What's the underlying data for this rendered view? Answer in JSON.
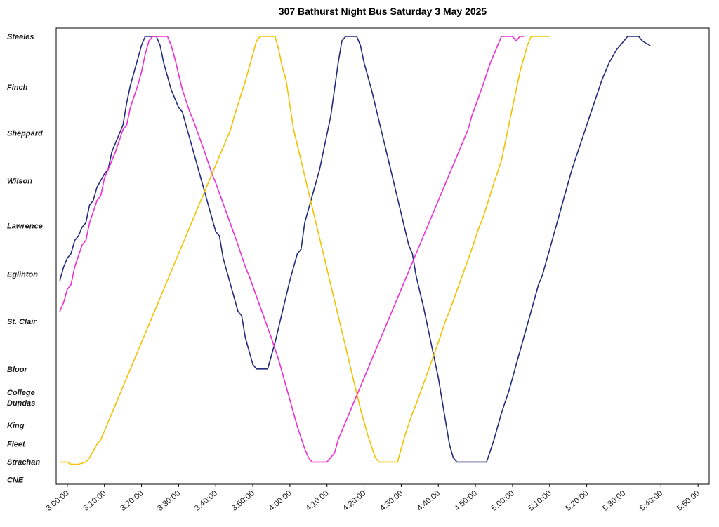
{
  "title": "307 Bathurst Night Bus Saturday 3 May 2025",
  "chart_data": {
    "type": "line",
    "title": "307 Bathurst Night Bus Saturday 3 May 2025",
    "xlabel": "",
    "ylabel": "",
    "grid": false,
    "legend_position": "none",
    "x_axis": {
      "unit": "minutes-after-midnight",
      "domain": [
        177,
        353
      ],
      "ticks": [
        180,
        190,
        200,
        210,
        220,
        230,
        240,
        250,
        260,
        270,
        280,
        290,
        300,
        310,
        320,
        330,
        340,
        350
      ],
      "tick_labels": [
        "3:00:00",
        "3:10:00",
        "3:20:00",
        "3:30:00",
        "3:40:00",
        "3:50:00",
        "4:00:00",
        "4:10:00",
        "4:20:00",
        "4:30:00",
        "4:40:00",
        "4:50:00",
        "5:00:00",
        "5:10:00",
        "5:20:00",
        "5:30:00",
        "5:40:00",
        "5:50:00"
      ]
    },
    "y_axis": {
      "unit": "relative-distance-along-route",
      "domain": [
        -1.9,
        101
      ],
      "inverted": true,
      "stations": [
        {
          "name": "Steeles",
          "pos": 0
        },
        {
          "name": "Finch",
          "pos": 11.4
        },
        {
          "name": "Sheppard",
          "pos": 21.8
        },
        {
          "name": "Wilson",
          "pos": 32.5
        },
        {
          "name": "Lawrence",
          "pos": 42.7
        },
        {
          "name": "Eglinton",
          "pos": 53.6
        },
        {
          "name": "St. Clair",
          "pos": 64.3
        },
        {
          "name": "Bloor",
          "pos": 75.0
        },
        {
          "name": "College",
          "pos": 80.3
        },
        {
          "name": "Dundas",
          "pos": 82.6
        },
        {
          "name": "King",
          "pos": 87.7
        },
        {
          "name": "Fleet",
          "pos": 91.9
        },
        {
          "name": "Strachan",
          "pos": 95.9
        },
        {
          "name": "CNE",
          "pos": 100
        }
      ]
    },
    "series": [
      {
        "name": "bus-run-navy",
        "color": "#232c7b",
        "points": [
          [
            178,
            55
          ],
          [
            179,
            52
          ],
          [
            180,
            50
          ],
          [
            181,
            49
          ],
          [
            182,
            46
          ],
          [
            183,
            45
          ],
          [
            184,
            43
          ],
          [
            185,
            42
          ],
          [
            186,
            38
          ],
          [
            187,
            37
          ],
          [
            188,
            34
          ],
          [
            190,
            31
          ],
          [
            191,
            30
          ],
          [
            192,
            26
          ],
          [
            194,
            22
          ],
          [
            195,
            20
          ],
          [
            196,
            15
          ],
          [
            197,
            11
          ],
          [
            198,
            8
          ],
          [
            199,
            5
          ],
          [
            200,
            2
          ],
          [
            201,
            0
          ],
          [
            204,
            0
          ],
          [
            205,
            2
          ],
          [
            206,
            6
          ],
          [
            208,
            12
          ],
          [
            210,
            16
          ],
          [
            211,
            17
          ],
          [
            212,
            20
          ],
          [
            214,
            26
          ],
          [
            216,
            32
          ],
          [
            218,
            38
          ],
          [
            220,
            44
          ],
          [
            221,
            45
          ],
          [
            222,
            50
          ],
          [
            224,
            56
          ],
          [
            226,
            62
          ],
          [
            227,
            63
          ],
          [
            228,
            68
          ],
          [
            229,
            71
          ],
          [
            230,
            74
          ],
          [
            231,
            75
          ],
          [
            234,
            75
          ],
          [
            236,
            69
          ],
          [
            238,
            62
          ],
          [
            240,
            55
          ],
          [
            242,
            49
          ],
          [
            243,
            48
          ],
          [
            244,
            42
          ],
          [
            246,
            36
          ],
          [
            248,
            30
          ],
          [
            250,
            22
          ],
          [
            251,
            18
          ],
          [
            252,
            12
          ],
          [
            253,
            6
          ],
          [
            254,
            1
          ],
          [
            255,
            0
          ],
          [
            258,
            0
          ],
          [
            259,
            2
          ],
          [
            260,
            6
          ],
          [
            262,
            12
          ],
          [
            264,
            19
          ],
          [
            266,
            26
          ],
          [
            268,
            33
          ],
          [
            270,
            40
          ],
          [
            272,
            47
          ],
          [
            273,
            49
          ],
          [
            274,
            54
          ],
          [
            276,
            61
          ],
          [
            278,
            69
          ],
          [
            280,
            77
          ],
          [
            281,
            82
          ],
          [
            282,
            87
          ],
          [
            283,
            92
          ],
          [
            284,
            95
          ],
          [
            285,
            96
          ],
          [
            293,
            96
          ],
          [
            295,
            91
          ],
          [
            297,
            85
          ],
          [
            299,
            80
          ],
          [
            301,
            74
          ],
          [
            303,
            68
          ],
          [
            305,
            62
          ],
          [
            307,
            56
          ],
          [
            308,
            54
          ],
          [
            310,
            48
          ],
          [
            312,
            42
          ],
          [
            314,
            36
          ],
          [
            316,
            30
          ],
          [
            318,
            25
          ],
          [
            320,
            20
          ],
          [
            322,
            15
          ],
          [
            324,
            10
          ],
          [
            326,
            6
          ],
          [
            328,
            3
          ],
          [
            330,
            1
          ],
          [
            331,
            0
          ],
          [
            334,
            0
          ],
          [
            335,
            1
          ],
          [
            336,
            1.5
          ],
          [
            337,
            2
          ]
        ]
      },
      {
        "name": "bus-run-magenta",
        "color": "#ee2ed2",
        "points": [
          [
            178,
            62
          ],
          [
            179,
            60
          ],
          [
            180,
            57
          ],
          [
            181,
            56
          ],
          [
            182,
            52
          ],
          [
            184,
            47
          ],
          [
            185,
            46
          ],
          [
            186,
            42
          ],
          [
            188,
            37
          ],
          [
            189,
            36
          ],
          [
            190,
            32
          ],
          [
            192,
            28
          ],
          [
            193,
            26
          ],
          [
            195,
            21
          ],
          [
            196,
            20
          ],
          [
            197,
            16
          ],
          [
            199,
            11
          ],
          [
            200,
            8
          ],
          [
            201,
            4
          ],
          [
            202,
            1
          ],
          [
            203,
            0
          ],
          [
            207,
            0
          ],
          [
            208,
            2
          ],
          [
            209,
            5
          ],
          [
            211,
            12
          ],
          [
            213,
            17
          ],
          [
            214,
            19
          ],
          [
            217,
            26
          ],
          [
            219,
            31
          ],
          [
            220,
            33
          ],
          [
            223,
            40
          ],
          [
            226,
            47
          ],
          [
            228,
            52
          ],
          [
            229,
            54
          ],
          [
            232,
            61
          ],
          [
            235,
            68
          ],
          [
            237,
            73
          ],
          [
            238,
            76
          ],
          [
            240,
            82
          ],
          [
            242,
            88
          ],
          [
            244,
            93
          ],
          [
            245,
            95
          ],
          [
            246,
            96
          ],
          [
            250,
            96
          ],
          [
            252,
            94
          ],
          [
            253,
            91
          ],
          [
            256,
            85
          ],
          [
            259,
            79
          ],
          [
            261,
            75
          ],
          [
            262,
            73
          ],
          [
            265,
            67
          ],
          [
            268,
            61
          ],
          [
            270,
            57
          ],
          [
            271,
            55
          ],
          [
            274,
            49
          ],
          [
            277,
            43
          ],
          [
            279,
            39
          ],
          [
            280,
            37
          ],
          [
            283,
            31
          ],
          [
            286,
            25
          ],
          [
            288,
            21
          ],
          [
            289,
            18
          ],
          [
            292,
            11
          ],
          [
            294,
            6
          ],
          [
            296,
            2
          ],
          [
            297,
            0
          ],
          [
            300,
            0
          ],
          [
            301,
            1
          ],
          [
            302,
            0
          ],
          [
            303,
            0
          ]
        ]
      },
      {
        "name": "bus-run-gold",
        "color": "#f2c100",
        "points": [
          [
            178,
            96
          ],
          [
            180,
            96
          ],
          [
            181,
            96.5
          ],
          [
            183,
            96.5
          ],
          [
            185,
            96
          ],
          [
            186,
            95
          ],
          [
            188,
            92
          ],
          [
            189,
            91
          ],
          [
            192,
            85
          ],
          [
            194,
            81
          ],
          [
            195,
            79
          ],
          [
            198,
            73
          ],
          [
            200,
            69
          ],
          [
            201,
            67
          ],
          [
            204,
            61
          ],
          [
            206,
            57
          ],
          [
            207,
            55
          ],
          [
            210,
            49
          ],
          [
            212,
            45
          ],
          [
            213,
            43
          ],
          [
            216,
            37
          ],
          [
            218,
            33
          ],
          [
            219,
            31
          ],
          [
            222,
            25
          ],
          [
            224,
            21
          ],
          [
            225,
            18
          ],
          [
            228,
            10
          ],
          [
            229,
            7
          ],
          [
            230,
            4
          ],
          [
            231,
            1
          ],
          [
            232,
            0
          ],
          [
            236,
            0
          ],
          [
            237,
            3
          ],
          [
            238,
            7
          ],
          [
            239,
            10
          ],
          [
            241,
            21
          ],
          [
            243,
            28
          ],
          [
            245,
            35
          ],
          [
            247,
            42
          ],
          [
            249,
            49
          ],
          [
            251,
            56
          ],
          [
            253,
            63
          ],
          [
            255,
            70
          ],
          [
            257,
            77
          ],
          [
            259,
            84
          ],
          [
            261,
            90
          ],
          [
            263,
            95
          ],
          [
            264,
            96
          ],
          [
            269,
            96
          ],
          [
            271,
            90
          ],
          [
            273,
            85
          ],
          [
            274,
            83
          ],
          [
            277,
            76
          ],
          [
            280,
            69
          ],
          [
            282,
            64
          ],
          [
            283,
            62
          ],
          [
            286,
            55
          ],
          [
            289,
            48
          ],
          [
            291,
            43
          ],
          [
            292,
            41
          ],
          [
            295,
            33
          ],
          [
            297,
            28
          ],
          [
            298,
            24
          ],
          [
            300,
            16
          ],
          [
            302,
            8
          ],
          [
            304,
            2
          ],
          [
            305,
            0
          ],
          [
            310,
            0
          ]
        ]
      }
    ]
  }
}
